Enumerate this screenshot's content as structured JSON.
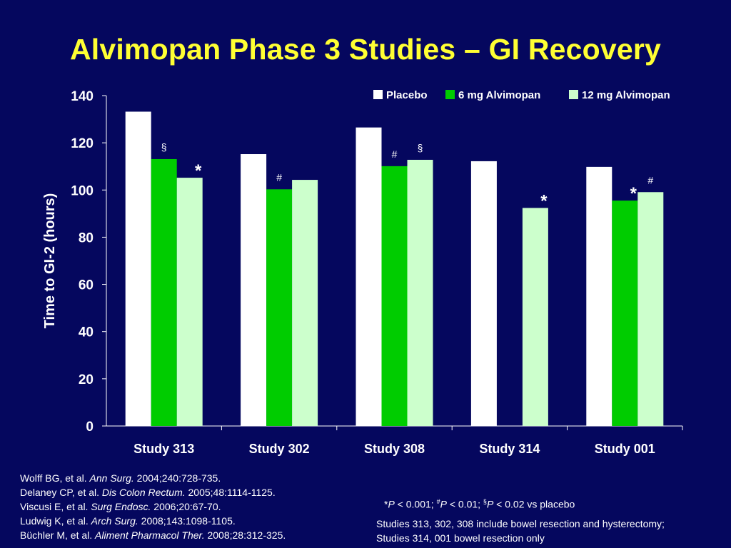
{
  "slide": {
    "title": "Alvimopan Phase 3 Studies – GI Recovery"
  },
  "chart_data": {
    "type": "bar",
    "ylabel": "Time to GI-2 (hours)",
    "xlabel": "",
    "ylim": [
      0,
      140
    ],
    "yticks": [
      0,
      20,
      40,
      60,
      80,
      100,
      120,
      140
    ],
    "grid": false,
    "legend_position": "top-right",
    "categories": [
      "Study 313",
      "Study 302",
      "Study 308",
      "Study 314",
      "Study 001"
    ],
    "series": [
      {
        "name": "Placebo",
        "color": "#ffffff",
        "values": [
          133.2,
          115.2,
          126.5,
          112.2,
          109.8
        ]
      },
      {
        "name": "6 mg Alvimopan",
        "color": "#00cc00",
        "values": [
          113.1,
          100.3,
          110.1,
          null,
          95.5
        ]
      },
      {
        "name": "12 mg Alvimopan",
        "color": "#ccffcc",
        "values": [
          105.2,
          104.3,
          112.8,
          92.4,
          99.1
        ]
      }
    ],
    "annotations": [
      {
        "category": "Study 313",
        "series": "6 mg Alvimopan",
        "symbol": "§"
      },
      {
        "category": "Study 313",
        "series": "12 mg Alvimopan",
        "symbol": "*"
      },
      {
        "category": "Study 302",
        "series": "6 mg Alvimopan",
        "symbol": "#"
      },
      {
        "category": "Study 308",
        "series": "6 mg Alvimopan",
        "symbol": "#"
      },
      {
        "category": "Study 308",
        "series": "12 mg Alvimopan",
        "symbol": "§"
      },
      {
        "category": "Study 314",
        "series": "12 mg Alvimopan",
        "symbol": "*"
      },
      {
        "category": "Study 001",
        "series": "6 mg Alvimopan",
        "symbol": "*"
      },
      {
        "category": "Study 001",
        "series": "12 mg Alvimopan",
        "symbol": "#"
      }
    ]
  },
  "references": [
    {
      "authors": "Wolff BG, et al. ",
      "journal": "Ann Surg.",
      "details": " 2004;240:728-735."
    },
    {
      "authors": "Delaney CP, et al. ",
      "journal": "Dis Colon Rectum.",
      "details": " 2005;48:1114-1125."
    },
    {
      "authors": "Viscusi E, et al. ",
      "journal": "Surg Endosc.",
      "details": " 2006;20:67-70."
    },
    {
      "authors": "Ludwig K, et al. ",
      "journal": "Arch Surg.",
      "details": " 2008;143:1098-1105."
    },
    {
      "authors": "Büchler M, et al. ",
      "journal": "Aliment Pharmacol Ther.",
      "details": " 2008;28:312-325."
    }
  ],
  "footnote": {
    "star_sym": "*",
    "star_p": "P",
    "star_text": " < 0.001; ",
    "hash_sym": "#",
    "hash_p": "P",
    "hash_text": " < 0.01; ",
    "sect_sym": "§",
    "sect_p": "P",
    "sect_text": " < 0.02 vs placebo"
  },
  "scope_note": {
    "line1": "Studies 313, 302, 308 include bowel resection and hysterectomy;",
    "line2": "Studies 314, 001 bowel resection only"
  }
}
